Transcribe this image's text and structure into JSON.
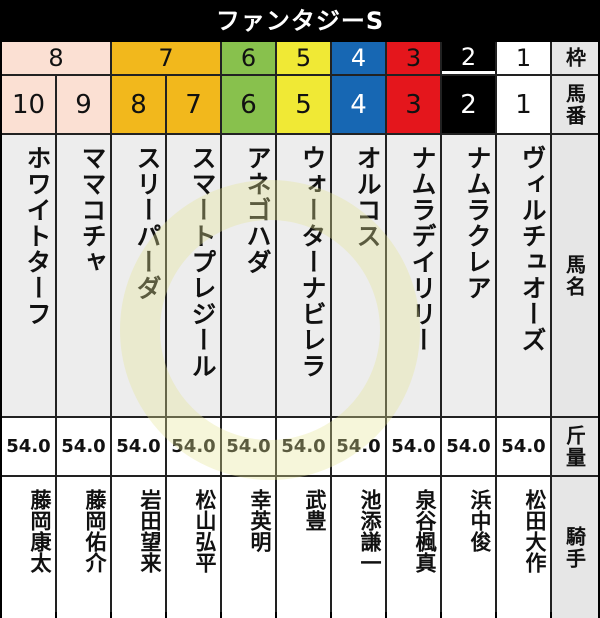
{
  "title": "ファンタジーS",
  "labels": {
    "frame": "枠",
    "number": "馬番",
    "horse": "馬名",
    "weight": "斤量",
    "jockey": "騎手"
  },
  "frames": [
    {
      "label": "8",
      "span": 2,
      "bg": "#fbe0d3",
      "fg": "#111"
    },
    {
      "label": "7",
      "span": 2,
      "bg": "#f2b81c",
      "fg": "#111"
    },
    {
      "label": "6",
      "span": 1,
      "bg": "#88c14d",
      "fg": "#111"
    },
    {
      "label": "5",
      "span": 1,
      "bg": "#f0e935",
      "fg": "#111"
    },
    {
      "label": "4",
      "span": 1,
      "bg": "#1767b3",
      "fg": "#fff"
    },
    {
      "label": "3",
      "span": 1,
      "bg": "#e4161c",
      "fg": "#111"
    },
    {
      "label": "2",
      "span": 1,
      "bg": "#000000",
      "fg": "#fff"
    },
    {
      "label": "1",
      "span": 1,
      "bg": "#ffffff",
      "fg": "#111"
    }
  ],
  "horses": [
    {
      "number": "10",
      "name": "ホワイトターフ",
      "weight": "54.0",
      "jockey": "藤岡康太",
      "bg": "#fbe0d3",
      "fg": "#111"
    },
    {
      "number": "9",
      "name": "ママコチャ",
      "weight": "54.0",
      "jockey": "藤岡佑介",
      "bg": "#fbe0d3",
      "fg": "#111"
    },
    {
      "number": "8",
      "name": "スリーパーダ",
      "weight": "54.0",
      "jockey": "岩田望来",
      "bg": "#f2b81c",
      "fg": "#111"
    },
    {
      "number": "7",
      "name": "スマートプレジール",
      "weight": "54.0",
      "jockey": "松山弘平",
      "bg": "#f2b81c",
      "fg": "#111"
    },
    {
      "number": "6",
      "name": "アネゴハダ",
      "weight": "54.0",
      "jockey": "幸英明",
      "bg": "#88c14d",
      "fg": "#111"
    },
    {
      "number": "5",
      "name": "ウォーターナビレラ",
      "weight": "54.0",
      "jockey": "武豊",
      "bg": "#f0e935",
      "fg": "#111"
    },
    {
      "number": "4",
      "name": "オルコス",
      "weight": "54.0",
      "jockey": "池添謙一",
      "bg": "#1767b3",
      "fg": "#fff"
    },
    {
      "number": "3",
      "name": "ナムラデイリリー",
      "weight": "54.0",
      "jockey": "泉谷楓真",
      "bg": "#e4161c",
      "fg": "#111"
    },
    {
      "number": "2",
      "name": "ナムラクレア",
      "weight": "54.0",
      "jockey": "浜中俊",
      "bg": "#000000",
      "fg": "#fff"
    },
    {
      "number": "1",
      "name": "ヴィルチュオーズ",
      "weight": "54.0",
      "jockey": "松田大作",
      "bg": "#ffffff",
      "fg": "#111"
    }
  ]
}
